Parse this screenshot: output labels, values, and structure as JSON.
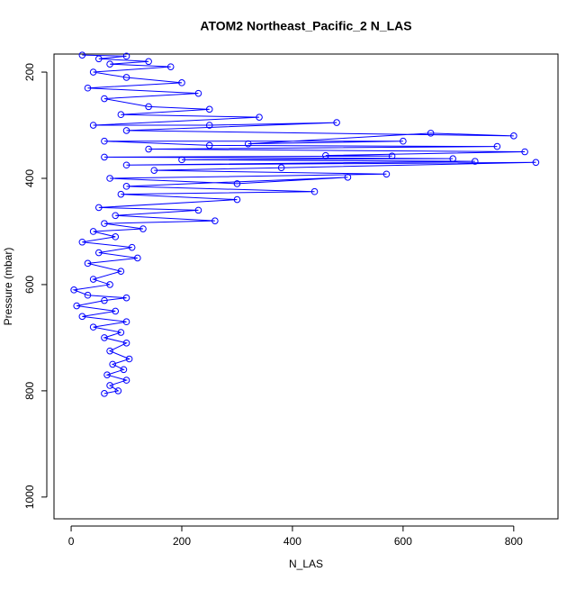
{
  "chart_data": {
    "type": "line",
    "title": "ATOM2 Northeast_Pacific_2 N_LAS",
    "x_label": "N_LAS",
    "y_label": "Pressure (mbar)",
    "xlim": [
      -31,
      880
    ],
    "ylim": [
      1041,
      166
    ],
    "y_reversed": true,
    "xticks": [
      0,
      200,
      400,
      600,
      800
    ],
    "yticks": [
      200,
      400,
      600,
      800,
      1000
    ],
    "markers": true,
    "series": [
      {
        "color": "#0000ff",
        "x": [
          60,
          85,
          70,
          100,
          65,
          95,
          75,
          105,
          70,
          100,
          60,
          90,
          40,
          100,
          20,
          80,
          10,
          60,
          100,
          30,
          5,
          70,
          40,
          90,
          30,
          120,
          50,
          110,
          20,
          80,
          40,
          130,
          60,
          260,
          80,
          230,
          50,
          300,
          90,
          440,
          100,
          500,
          300,
          70,
          570,
          150,
          380,
          840,
          100,
          730,
          200,
          690,
          60,
          580,
          460,
          820,
          140,
          770,
          250,
          60,
          600,
          320,
          650,
          800,
          100,
          480,
          250,
          40,
          340,
          90,
          250,
          140,
          60,
          230,
          30,
          200,
          100,
          40,
          180,
          70,
          140,
          50,
          100,
          20
        ],
        "values": [
          805,
          800,
          790,
          780,
          770,
          760,
          750,
          740,
          725,
          710,
          700,
          690,
          680,
          670,
          660,
          650,
          640,
          630,
          625,
          620,
          610,
          600,
          590,
          575,
          560,
          550,
          540,
          530,
          520,
          510,
          500,
          495,
          485,
          480,
          470,
          460,
          455,
          440,
          430,
          425,
          415,
          398,
          410,
          400,
          392,
          385,
          380,
          370,
          375,
          368,
          365,
          363,
          360,
          358,
          357,
          350,
          345,
          340,
          338,
          330,
          330,
          335,
          315,
          320,
          310,
          295,
          300,
          300,
          285,
          280,
          270,
          265,
          250,
          240,
          230,
          220,
          210,
          200,
          190,
          185,
          180,
          175,
          170,
          168
        ]
      }
    ]
  }
}
